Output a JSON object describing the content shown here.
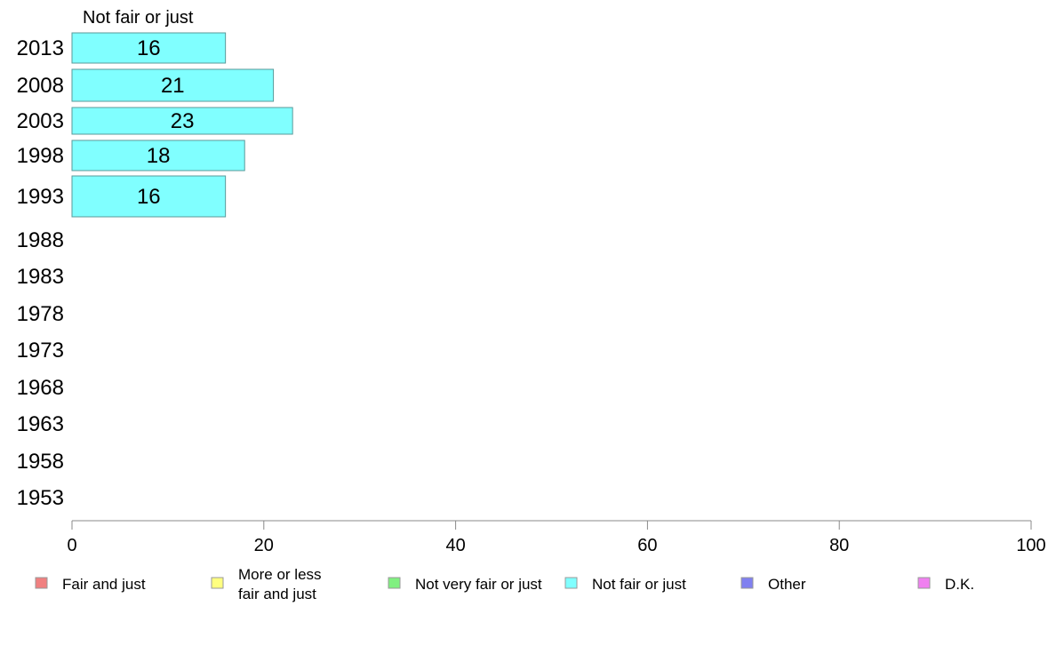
{
  "chart_data": {
    "type": "bar",
    "orientation": "horizontal",
    "series_title": "Not fair or just",
    "categories": [
      "2013",
      "2008",
      "2003",
      "1998",
      "1993",
      "1988",
      "1983",
      "1978",
      "1973",
      "1968",
      "1963",
      "1958",
      "1953"
    ],
    "series": [
      {
        "name": "Not fair or just",
        "color": "#80ffff",
        "values": [
          16,
          21,
          23,
          18,
          16,
          null,
          null,
          null,
          null,
          null,
          null,
          null,
          null
        ],
        "labels": [
          "16",
          "21",
          "23",
          "18",
          "16",
          "",
          "",
          "",
          "",
          "",
          "",
          "",
          ""
        ]
      }
    ],
    "xlim": [
      0,
      100
    ],
    "xticks": [
      "0",
      "20",
      "40",
      "60",
      "80",
      "100"
    ],
    "grid": false,
    "legend_position": "bottom",
    "legend": [
      {
        "label": "Fair and just",
        "color": "#f08080"
      },
      {
        "label": "More or less\nfair and just",
        "color": "#ffff80"
      },
      {
        "label": "Not very fair or just",
        "color": "#80f080"
      },
      {
        "label": "Not fair or just",
        "color": "#80ffff"
      },
      {
        "label": "Other",
        "color": "#8080f0"
      },
      {
        "label": "D.K.",
        "color": "#f080f0"
      }
    ]
  }
}
